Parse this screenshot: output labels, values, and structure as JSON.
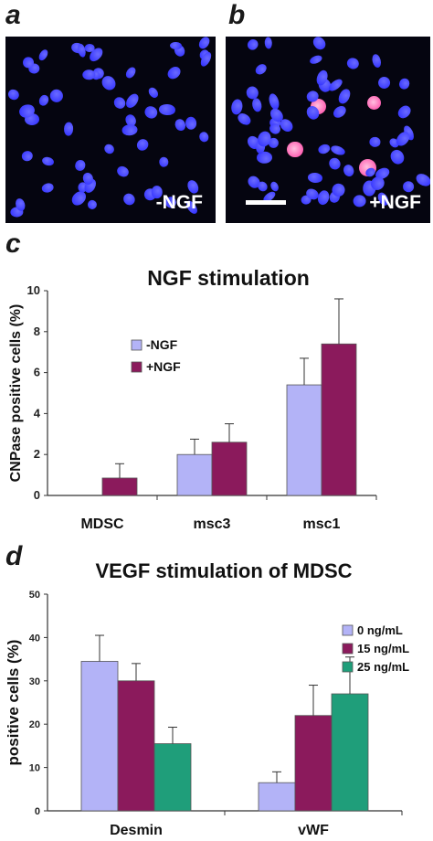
{
  "panels": {
    "a": {
      "letter": "a",
      "label": "-NGF"
    },
    "b": {
      "letter": "b",
      "label": "+NGF"
    },
    "c": {
      "letter": "c"
    },
    "d": {
      "letter": "d"
    }
  },
  "colors": {
    "nucleus": "#2a2aff",
    "positive_cell": "#ff3aa0",
    "light_purple": "#b3b3f7",
    "dark_magenta": "#8b1a5c",
    "teal": "#1f9e7a"
  },
  "chart_data": [
    {
      "id": "c",
      "type": "bar",
      "title": "NGF stimulation",
      "xlabel": "",
      "ylabel": "CNPase positive cells (%)",
      "ylim": [
        0,
        10
      ],
      "yticks": [
        0,
        2,
        4,
        6,
        8,
        10
      ],
      "categories": [
        "MDSC",
        "msc3",
        "msc1"
      ],
      "legend_position": "upper-left",
      "series": [
        {
          "name": "-NGF",
          "color": "#b3b3f7",
          "values": [
            0,
            2.0,
            5.4
          ],
          "errors": [
            0,
            0.75,
            1.3
          ]
        },
        {
          "name": "+NGF",
          "color": "#8b1a5c",
          "values": [
            0.85,
            2.6,
            7.4
          ],
          "errors": [
            0.7,
            0.9,
            2.2
          ]
        }
      ]
    },
    {
      "id": "d",
      "type": "bar",
      "title": "VEGF stimulation of MDSC",
      "xlabel": "",
      "ylabel": "positive cells (%)",
      "ylim": [
        0,
        50
      ],
      "yticks": [
        0,
        10,
        20,
        30,
        40,
        50
      ],
      "categories": [
        "Desmin",
        "vWF"
      ],
      "legend_position": "right",
      "series": [
        {
          "name": "0 ng/mL",
          "color": "#b3b3f7",
          "values": [
            34.5,
            6.5
          ],
          "errors": [
            6,
            2.5
          ]
        },
        {
          "name": "15 ng/mL",
          "color": "#8b1a5c",
          "values": [
            30,
            22
          ],
          "errors": [
            4,
            7
          ]
        },
        {
          "name": "25 ng/mL",
          "color": "#1f9e7a",
          "values": [
            15.5,
            27
          ],
          "errors": [
            3.8,
            8.5
          ]
        }
      ]
    }
  ]
}
